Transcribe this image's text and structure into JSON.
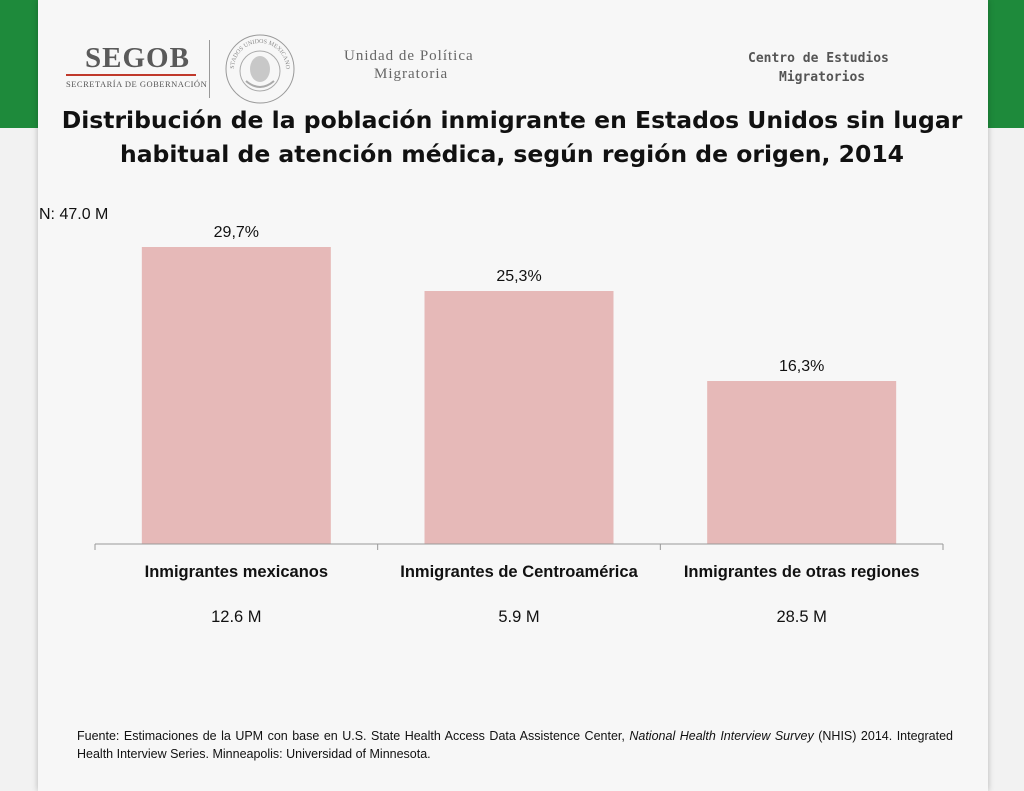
{
  "header": {
    "logo_main": "SEGOB",
    "logo_sub": "SECRETARÍA DE GOBERNACIÓN",
    "seal_text": "ESTADOS UNIDOS MEXICANOS",
    "unit_line1": "Unidad de Política",
    "unit_line2": "Migratoria",
    "center_line1": "Centro de Estudios",
    "center_line2": "Migratorios",
    "brand_color": "#1e8a3b"
  },
  "title": "Distribución de la población inmigrante en Estados Unidos sin lugar habitual de atención médica, según región de origen, 2014",
  "n_label": "N: 47.0 M",
  "chart_data": {
    "type": "bar",
    "categories": [
      "Inmigrantes mexicanos",
      "Inmigrantes de Centroamérica",
      "Inmigrantes de otras regiones"
    ],
    "values": [
      29.7,
      25.3,
      16.3
    ],
    "value_labels": [
      "29,7%",
      "25,3%",
      "16,3%"
    ],
    "sub_labels": [
      "12.6 M",
      "5.9 M",
      "28.5 M"
    ],
    "ylim": [
      0,
      30
    ],
    "bar_color": "#e6b9b8",
    "grid": false,
    "legend": "none"
  },
  "source": {
    "prefix": "Fuente: Estimaciones de la UPM con base en U.S. State Health Access Data Assistence Center, ",
    "italic": "National Health Interview Survey",
    "suffix": " (NHIS) 2014. Integrated Health Interview Series. Minneapolis: Universidad of Minnesota."
  }
}
